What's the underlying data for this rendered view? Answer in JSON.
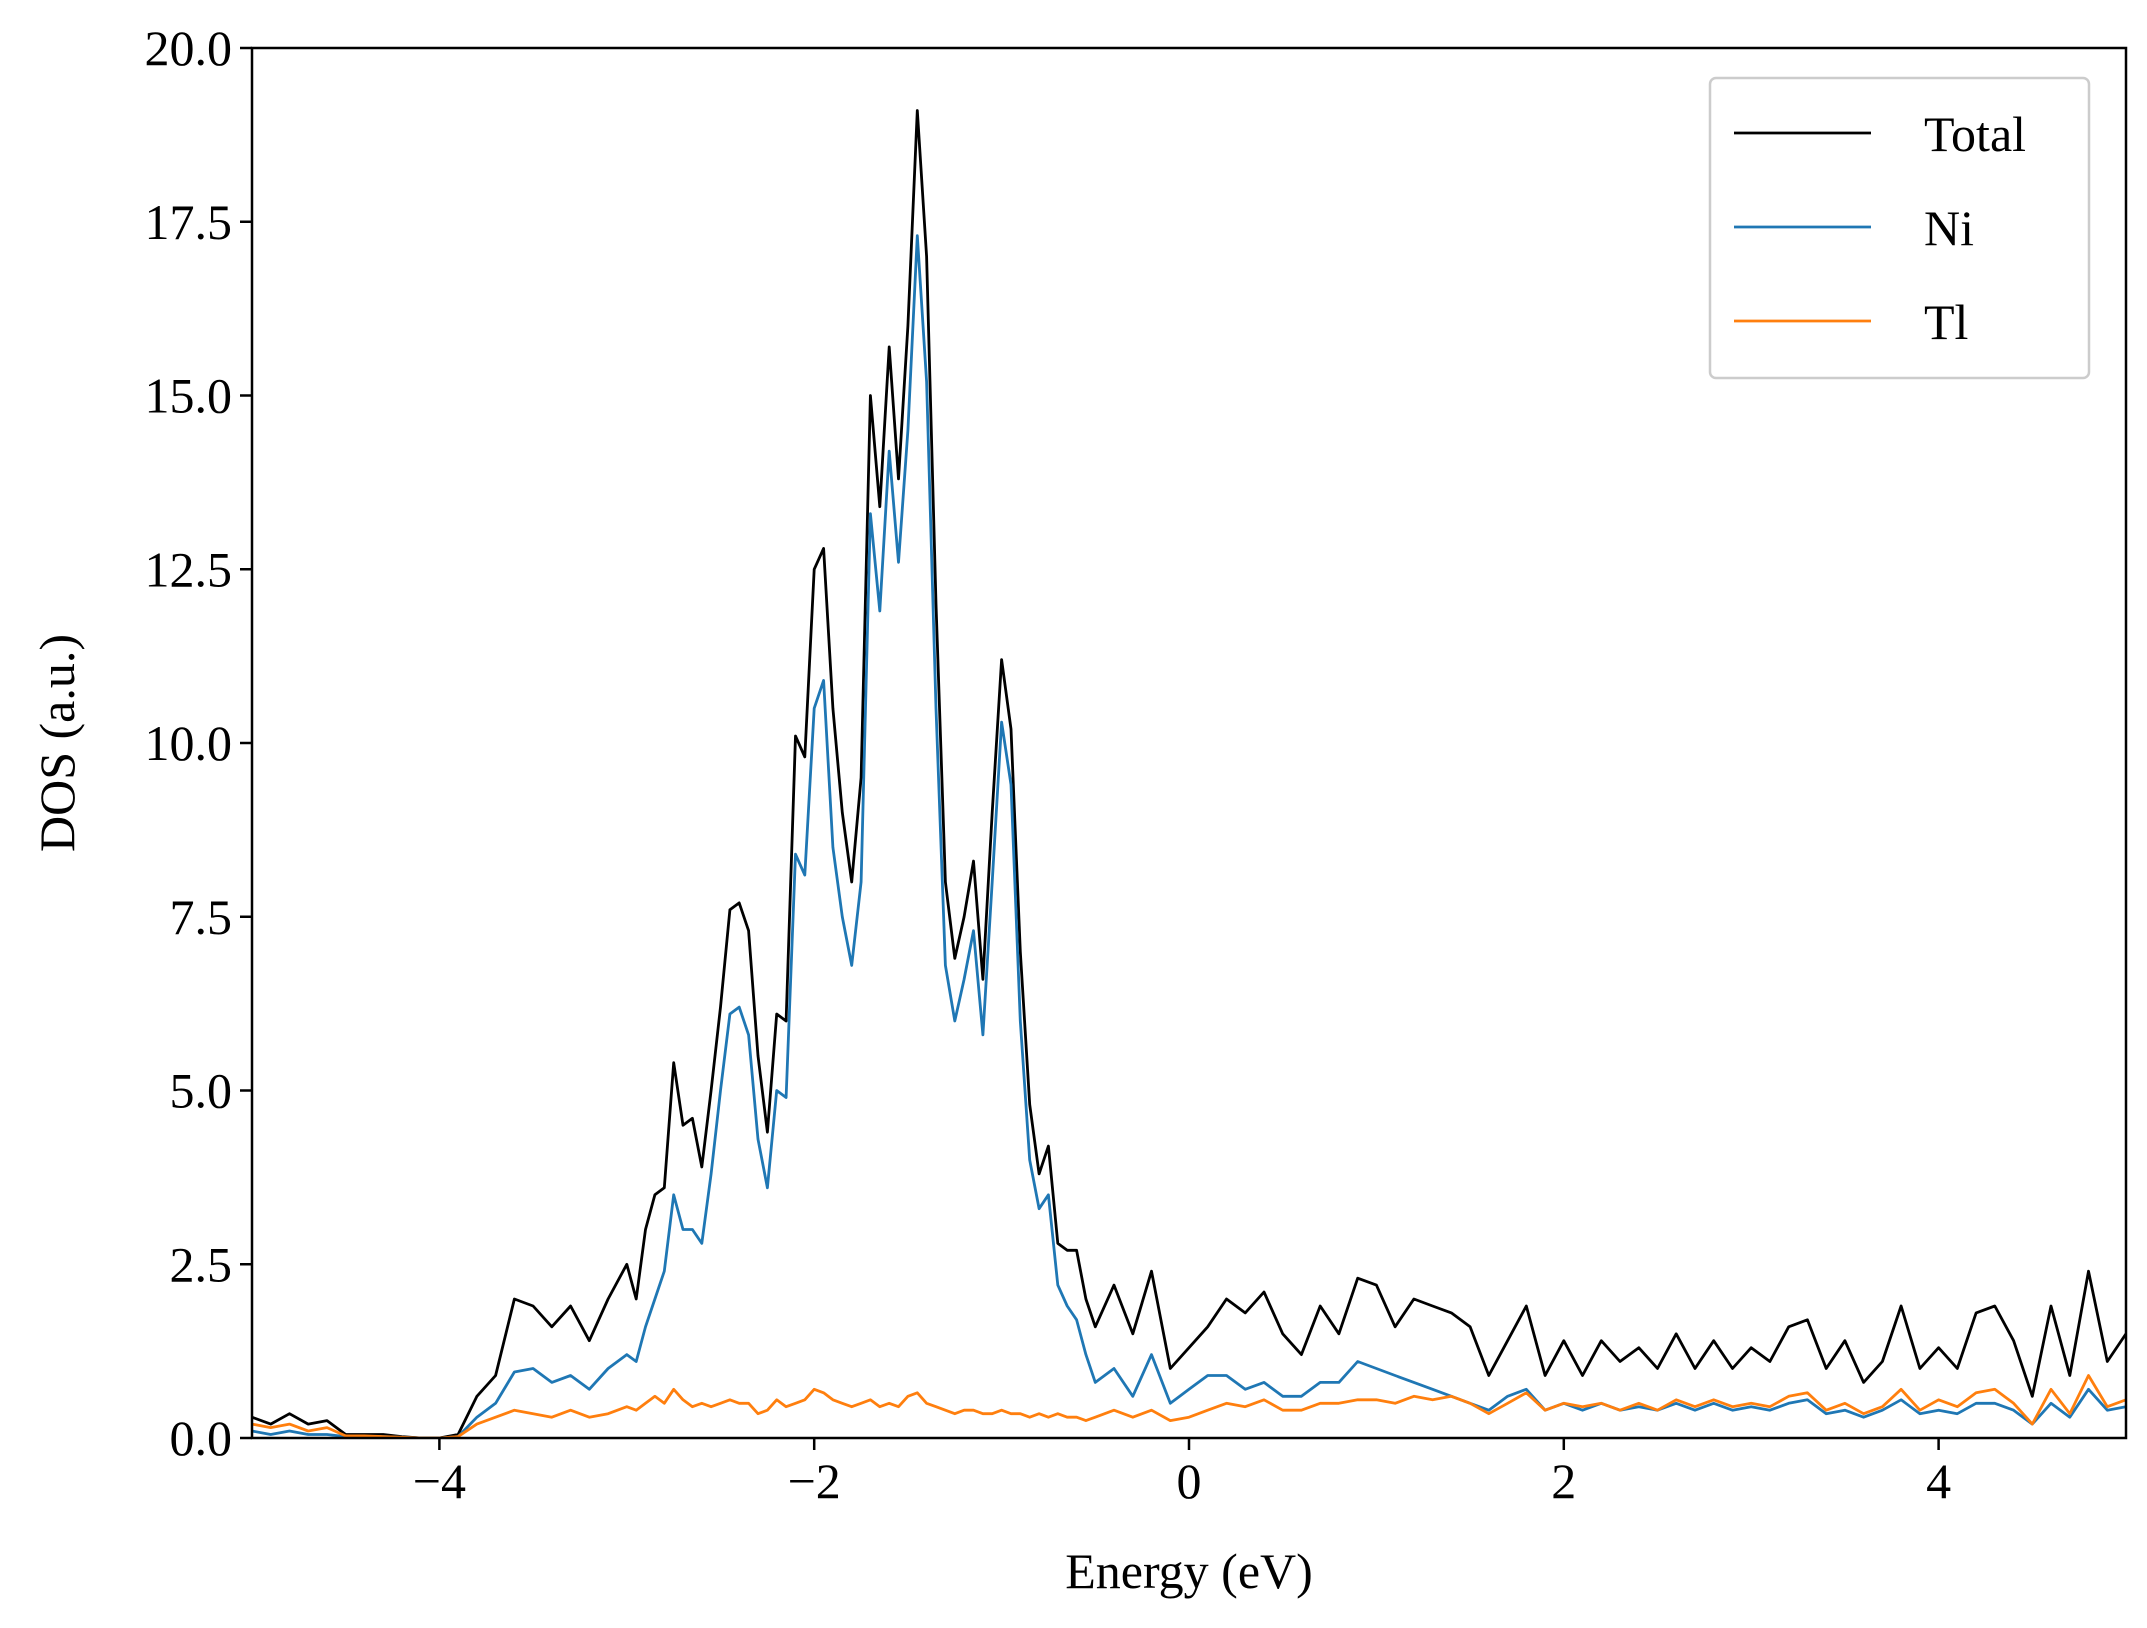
{
  "chart_data": {
    "type": "line",
    "xlabel": "Energy (eV)",
    "ylabel": "DOS (a.u.)",
    "xlim": [
      -5,
      5
    ],
    "ylim": [
      0,
      20
    ],
    "xticks": [
      {
        "value": -4,
        "label": "−4"
      },
      {
        "value": -2,
        "label": "−2"
      },
      0,
      2,
      4
    ],
    "yticks": [
      {
        "value": 0,
        "label": "0.0"
      },
      {
        "value": 2.5,
        "label": "2.5"
      },
      {
        "value": 5,
        "label": "5.0"
      },
      {
        "value": 7.5,
        "label": "7.5"
      },
      {
        "value": 10,
        "label": "10.0"
      },
      {
        "value": 12.5,
        "label": "12.5"
      },
      {
        "value": 15,
        "label": "15.0"
      },
      {
        "value": 17.5,
        "label": "17.5"
      },
      {
        "value": 20,
        "label": "20.0"
      }
    ],
    "legend": "upper right",
    "grid": false,
    "x": [
      -5,
      -4.9,
      -4.8,
      -4.7,
      -4.6,
      -4.5,
      -4.4,
      -4.3,
      -4.2,
      -4.1,
      -4,
      -3.9,
      -3.8,
      -3.7,
      -3.6,
      -3.5,
      -3.4,
      -3.3,
      -3.2,
      -3.1,
      -3,
      -2.95,
      -2.9,
      -2.85,
      -2.8,
      -2.75,
      -2.7,
      -2.65,
      -2.6,
      -2.55,
      -2.5,
      -2.45,
      -2.4,
      -2.35,
      -2.3,
      -2.25,
      -2.2,
      -2.15,
      -2.1,
      -2.05,
      -2,
      -1.95,
      -1.9,
      -1.85,
      -1.8,
      -1.75,
      -1.7,
      -1.65,
      -1.6,
      -1.55,
      -1.5,
      -1.45,
      -1.4,
      -1.35,
      -1.3,
      -1.25,
      -1.2,
      -1.15,
      -1.1,
      -1.05,
      -1,
      -0.95,
      -0.9,
      -0.85,
      -0.8,
      -0.75,
      -0.7,
      -0.65,
      -0.6,
      -0.55,
      -0.5,
      -0.4,
      -0.3,
      -0.2,
      -0.1,
      0,
      0.1,
      0.2,
      0.3,
      0.4,
      0.5,
      0.6,
      0.7,
      0.8,
      0.9,
      1,
      1.1,
      1.2,
      1.3,
      1.4,
      1.5,
      1.6,
      1.7,
      1.8,
      1.9,
      2,
      2.1,
      2.2,
      2.3,
      2.4,
      2.5,
      2.6,
      2.7,
      2.8,
      2.9,
      3,
      3.1,
      3.2,
      3.3,
      3.4,
      3.5,
      3.6,
      3.7,
      3.8,
      3.9,
      4,
      4.1,
      4.2,
      4.3,
      4.4,
      4.5,
      4.6,
      4.7,
      4.8,
      4.9,
      5
    ],
    "series": [
      {
        "name": "Total",
        "color": "#000000",
        "values": [
          0.3,
          0.2,
          0.35,
          0.2,
          0.25,
          0.05,
          0.05,
          0.05,
          0.02,
          0,
          0,
          0.05,
          0.6,
          0.9,
          2,
          1.9,
          1.6,
          1.9,
          1.4,
          2,
          2.5,
          2,
          3,
          3.5,
          3.6,
          5.4,
          4.5,
          4.6,
          3.9,
          5,
          6.2,
          7.6,
          7.7,
          7.3,
          5.5,
          4.4,
          6.1,
          6,
          10.1,
          9.8,
          12.5,
          12.8,
          10.5,
          9,
          8,
          9.5,
          15,
          13.4,
          15.7,
          13.8,
          16,
          19.1,
          17,
          12,
          8,
          6.9,
          7.5,
          8.3,
          6.6,
          9,
          11.2,
          10.2,
          7,
          4.8,
          3.8,
          4.2,
          2.8,
          2.7,
          2.7,
          2,
          1.6,
          2.2,
          1.5,
          2.4,
          1,
          1.3,
          1.6,
          2,
          1.8,
          2.1,
          1.5,
          1.2,
          1.9,
          1.5,
          2.3,
          2.2,
          1.6,
          2,
          1.9,
          1.8,
          1.6,
          0.9,
          1.4,
          1.9,
          0.9,
          1.4,
          0.9,
          1.4,
          1.1,
          1.3,
          1,
          1.5,
          1,
          1.4,
          1,
          1.3,
          1.1,
          1.6,
          1.7,
          1,
          1.4,
          0.8,
          1.1,
          1.9,
          1,
          1.3,
          1,
          1.8,
          1.9,
          1.4,
          0.6,
          1.9,
          0.9,
          2.4,
          1.1,
          1.5
        ]
      },
      {
        "name": "Ni",
        "color": "#1f77b4",
        "values": [
          0.1,
          0.05,
          0.1,
          0.05,
          0.05,
          0.02,
          0.02,
          0.02,
          0.01,
          0,
          0,
          0.02,
          0.3,
          0.5,
          0.95,
          1,
          0.8,
          0.9,
          0.7,
          1,
          1.2,
          1.1,
          1.6,
          2,
          2.4,
          3.5,
          3,
          3,
          2.8,
          3.8,
          5,
          6.1,
          6.2,
          5.8,
          4.3,
          3.6,
          5,
          4.9,
          8.4,
          8.1,
          10.5,
          10.9,
          8.5,
          7.5,
          6.8,
          8,
          13.3,
          11.9,
          14.2,
          12.6,
          14.5,
          17.3,
          15.2,
          10.5,
          6.8,
          6,
          6.6,
          7.3,
          5.8,
          8,
          10.3,
          9.4,
          6,
          4,
          3.3,
          3.5,
          2.2,
          1.9,
          1.7,
          1.2,
          0.8,
          1,
          0.6,
          1.2,
          0.5,
          0.7,
          0.9,
          0.9,
          0.7,
          0.8,
          0.6,
          0.6,
          0.8,
          0.8,
          1.1,
          1,
          0.9,
          0.8,
          0.7,
          0.6,
          0.5,
          0.4,
          0.6,
          0.7,
          0.4,
          0.5,
          0.4,
          0.5,
          0.4,
          0.45,
          0.4,
          0.5,
          0.4,
          0.5,
          0.4,
          0.45,
          0.4,
          0.5,
          0.55,
          0.35,
          0.4,
          0.3,
          0.4,
          0.55,
          0.35,
          0.4,
          0.35,
          0.5,
          0.5,
          0.4,
          0.2,
          0.5,
          0.3,
          0.7,
          0.4,
          0.45
        ]
      },
      {
        "name": "Tl",
        "color": "#ff7f0e",
        "values": [
          0.2,
          0.15,
          0.2,
          0.1,
          0.15,
          0.03,
          0.03,
          0.02,
          0.01,
          0,
          0,
          0.02,
          0.2,
          0.3,
          0.4,
          0.35,
          0.3,
          0.4,
          0.3,
          0.35,
          0.45,
          0.4,
          0.5,
          0.6,
          0.5,
          0.7,
          0.55,
          0.45,
          0.5,
          0.45,
          0.5,
          0.55,
          0.5,
          0.5,
          0.35,
          0.4,
          0.55,
          0.45,
          0.5,
          0.55,
          0.7,
          0.65,
          0.55,
          0.5,
          0.45,
          0.5,
          0.55,
          0.45,
          0.5,
          0.45,
          0.6,
          0.65,
          0.5,
          0.45,
          0.4,
          0.35,
          0.4,
          0.4,
          0.35,
          0.35,
          0.4,
          0.35,
          0.35,
          0.3,
          0.35,
          0.3,
          0.35,
          0.3,
          0.3,
          0.25,
          0.3,
          0.4,
          0.3,
          0.4,
          0.25,
          0.3,
          0.4,
          0.5,
          0.45,
          0.55,
          0.4,
          0.4,
          0.5,
          0.5,
          0.55,
          0.55,
          0.5,
          0.6,
          0.55,
          0.6,
          0.5,
          0.35,
          0.5,
          0.65,
          0.4,
          0.5,
          0.45,
          0.5,
          0.4,
          0.5,
          0.4,
          0.55,
          0.45,
          0.55,
          0.45,
          0.5,
          0.45,
          0.6,
          0.65,
          0.4,
          0.5,
          0.35,
          0.45,
          0.7,
          0.4,
          0.55,
          0.45,
          0.65,
          0.7,
          0.5,
          0.2,
          0.7,
          0.35,
          0.9,
          0.45,
          0.55
        ]
      }
    ]
  }
}
